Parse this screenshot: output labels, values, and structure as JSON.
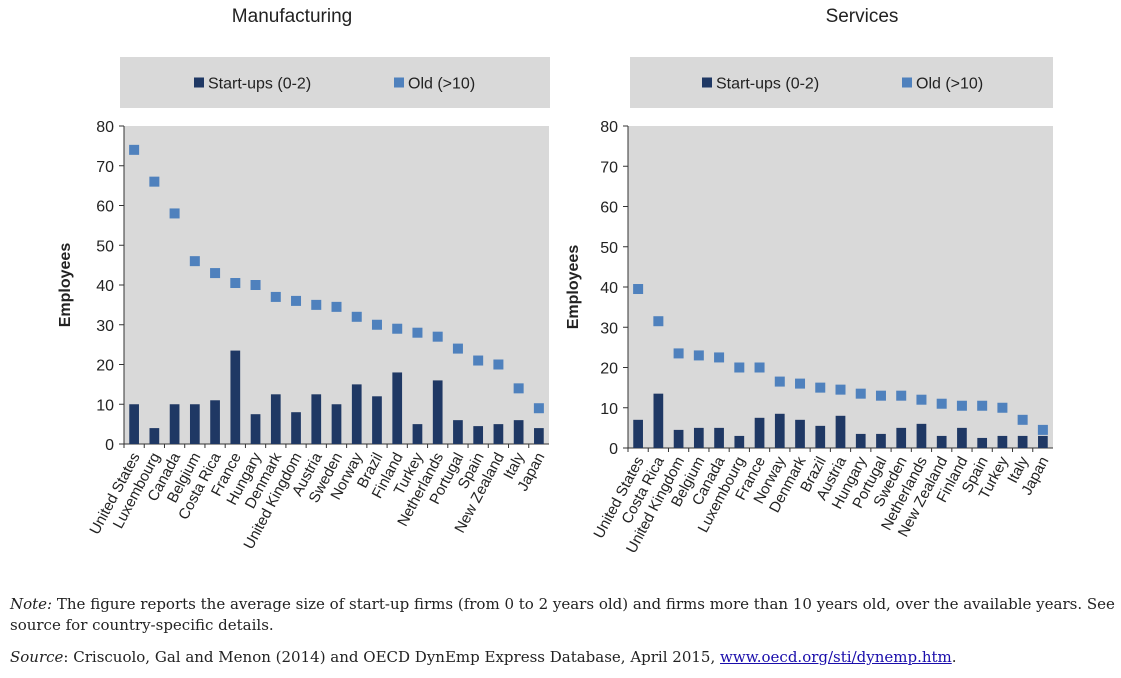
{
  "chart_data": [
    {
      "type": "bar",
      "title": "Manufacturing",
      "ylabel": "Employees",
      "ylim": [
        0,
        80
      ],
      "yticks": [
        0,
        10,
        20,
        30,
        40,
        50,
        60,
        70,
        80
      ],
      "categories": [
        "United States",
        "Luxembourg",
        "Canada",
        "Belgium",
        "Costa Rica",
        "France",
        "Hungary",
        "Denmark",
        "United Kingdom",
        "Austria",
        "Sweden",
        "Norway",
        "Brazil",
        "Finland",
        "Turkey",
        "Netherlands",
        "Portugal",
        "Spain",
        "New Zealand",
        "Italy",
        "Japan"
      ],
      "series": [
        {
          "name": "Start-ups (0-2)",
          "kind": "bar",
          "color": "#1f3864",
          "values": [
            10,
            4,
            10,
            10,
            11,
            23.5,
            7.5,
            12.5,
            8,
            12.5,
            10,
            15,
            12,
            18,
            5,
            16,
            6,
            4.5,
            5,
            6,
            4
          ]
        },
        {
          "name": "Old (>10)",
          "kind": "marker",
          "color": "#4f81bd",
          "values": [
            74,
            66,
            58,
            46,
            43,
            40.5,
            40,
            37,
            36,
            35,
            34.5,
            32,
            30,
            29,
            28,
            27,
            24,
            21,
            20,
            14,
            9
          ]
        }
      ],
      "legend": "top",
      "grid": false
    },
    {
      "type": "bar",
      "title": "Services",
      "ylabel": "Employees",
      "ylim": [
        0,
        80
      ],
      "yticks": [
        0,
        10,
        20,
        30,
        40,
        50,
        60,
        70,
        80
      ],
      "categories": [
        "United States",
        "Costa Rica",
        "United Kingdom",
        "Belgium",
        "Canada",
        "Luxembourg",
        "France",
        "Norway",
        "Denmark",
        "Brazil",
        "Austria",
        "Hungary",
        "Portugal",
        "Sweden",
        "Netherlands",
        "New Zealand",
        "Finland",
        "Spain",
        "Turkey",
        "Italy",
        "Japan"
      ],
      "series": [
        {
          "name": "Start-ups (0-2)",
          "kind": "bar",
          "color": "#1f3864",
          "values": [
            7,
            13.5,
            4.5,
            5,
            5,
            3,
            7.5,
            8.5,
            7,
            5.5,
            8,
            3.5,
            3.5,
            5,
            6,
            3,
            5,
            2.5,
            3,
            3,
            3
          ]
        },
        {
          "name": "Old (>10)",
          "kind": "marker",
          "color": "#4f81bd",
          "values": [
            39.5,
            31.5,
            23.5,
            23,
            22.5,
            20,
            20,
            16.5,
            16,
            15,
            14.5,
            13.5,
            13,
            13,
            12,
            11,
            10.5,
            10.5,
            10,
            7,
            4.5
          ]
        }
      ],
      "legend": "top",
      "grid": false
    }
  ],
  "colors": {
    "bar": "#1f3864",
    "marker": "#4f81bd",
    "plot_bg": "#d9d9d9",
    "legend_bg": "#d9d9d9"
  },
  "notes": {
    "note_label": "Note:",
    "note_text": " The figure reports the average size of start-up firms (from 0 to 2 years old) and firms more than 10 years old, over the available years. See source for country-specific details.",
    "source_label": "Source",
    "source_text": ": Criscuolo, Gal and Menon (2014) and OECD DynEmp Express Database, April 2015, ",
    "source_link": "www.oecd.org/sti/dynemp.htm",
    "source_end": "."
  }
}
